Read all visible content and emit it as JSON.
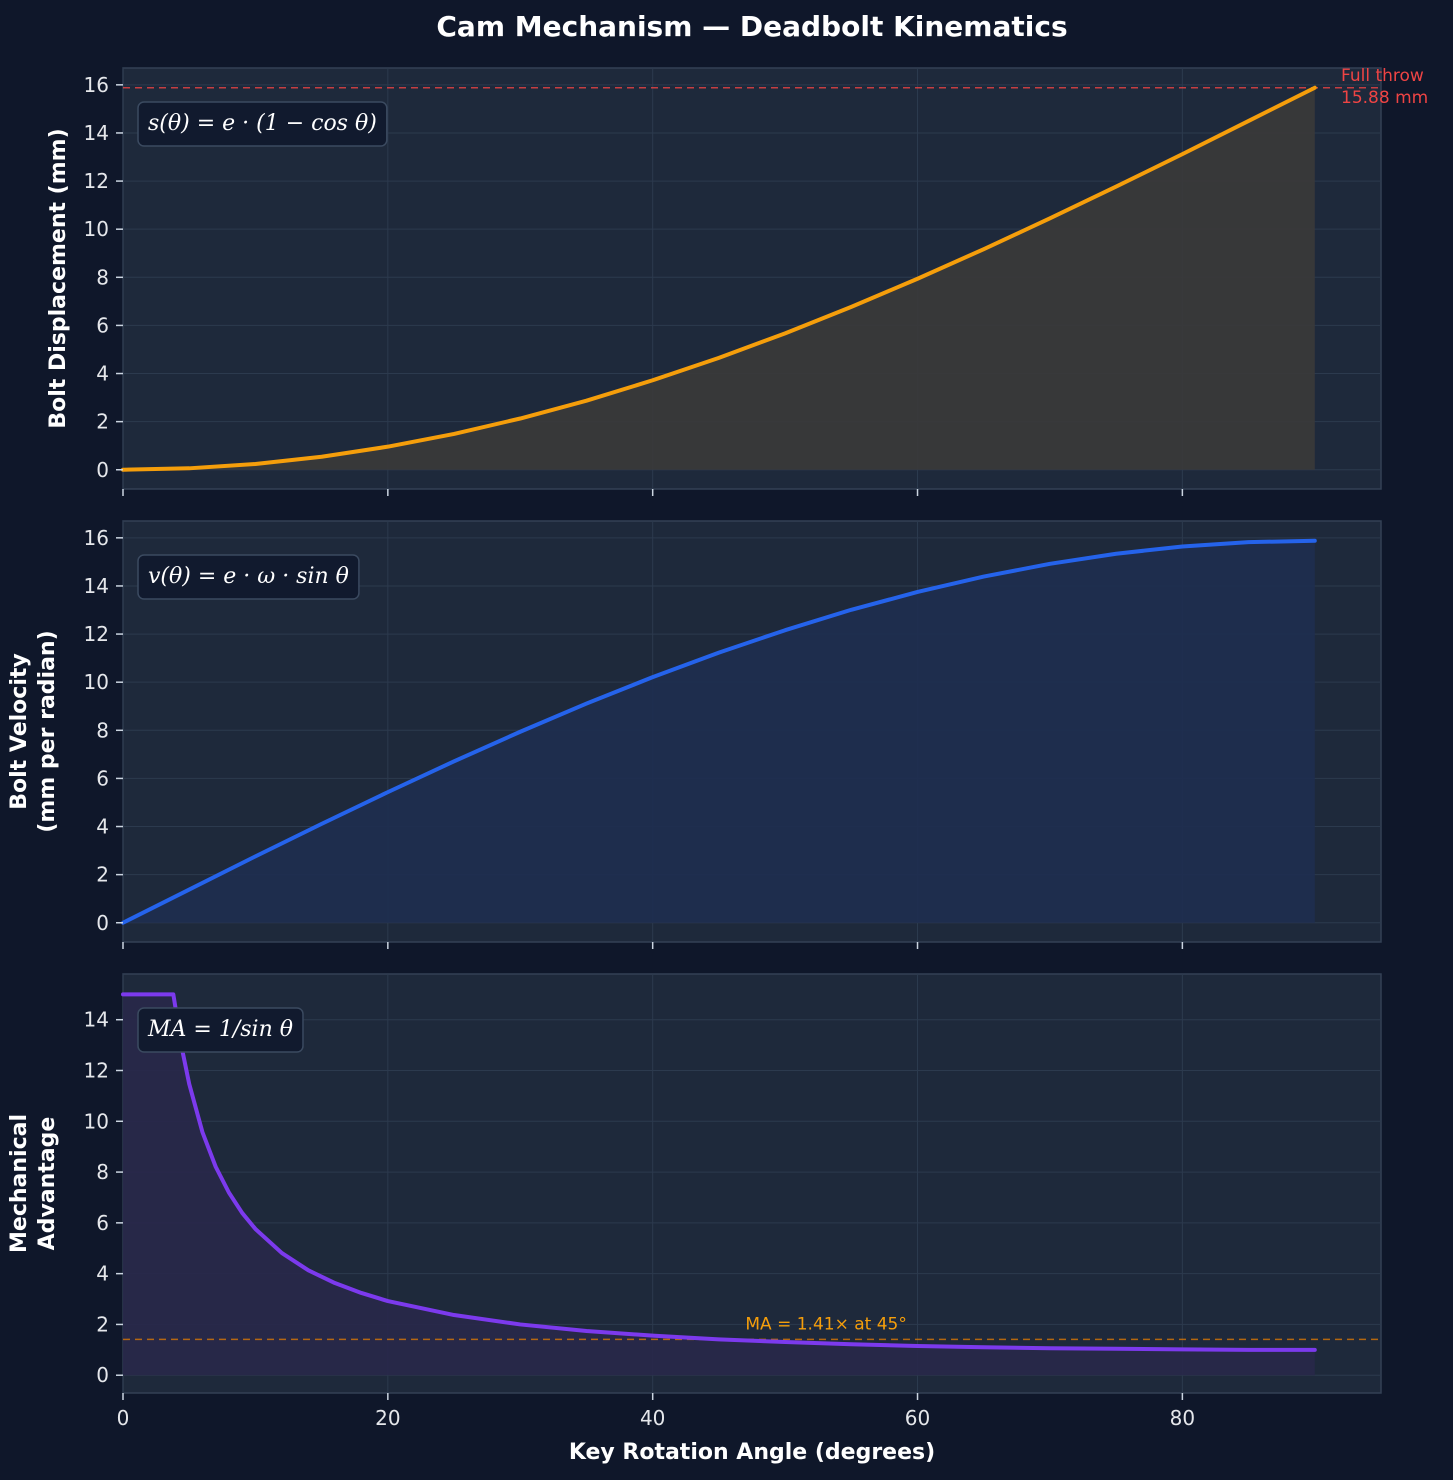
{
  "chart_data": {
    "title": "Cam Mechanism — Deadbolt Kinematics",
    "xlabel": "Key Rotation Angle (degrees)",
    "xlim": [
      0,
      95
    ],
    "xticks": [
      0,
      20,
      40,
      60,
      80
    ],
    "grid": true,
    "panels": [
      {
        "type": "area",
        "ylabel_lines": [
          "Bolt Displacement (mm)"
        ],
        "formula": "s(θ) = e · (1 − cos θ)",
        "ylim": [
          -0.8,
          16.7
        ],
        "yticks": [
          0,
          2,
          4,
          6,
          8,
          10,
          12,
          14,
          16
        ],
        "color": "#f59e0b",
        "fill_color": "#3a3a3a",
        "x": [
          0,
          5,
          10,
          15,
          20,
          25,
          30,
          35,
          40,
          45,
          50,
          55,
          60,
          65,
          70,
          75,
          80,
          85,
          90
        ],
        "y": [
          0,
          0.06,
          0.24,
          0.54,
          0.96,
          1.49,
          2.13,
          2.87,
          3.72,
          4.65,
          5.67,
          6.77,
          7.94,
          9.17,
          10.45,
          11.77,
          13.12,
          14.5,
          15.88
        ],
        "reference": {
          "value": 15.88,
          "color": "#ef4444",
          "label_lines": [
            "Full throw",
            "15.88 mm"
          ]
        }
      },
      {
        "type": "area",
        "ylabel_lines": [
          "Bolt Velocity",
          "(mm per radian)"
        ],
        "formula": "v(θ) = e · ω · sin θ",
        "ylim": [
          -0.8,
          16.7
        ],
        "yticks": [
          0,
          2,
          4,
          6,
          8,
          10,
          12,
          14,
          16
        ],
        "color": "#2563eb",
        "fill_color": "#1e2d50",
        "x": [
          0,
          5,
          10,
          15,
          20,
          25,
          30,
          35,
          40,
          45,
          50,
          55,
          60,
          65,
          70,
          75,
          80,
          85,
          90
        ],
        "y": [
          0,
          1.38,
          2.76,
          4.11,
          5.43,
          6.71,
          7.94,
          9.11,
          10.21,
          11.23,
          12.16,
          13.01,
          13.75,
          14.39,
          14.92,
          15.34,
          15.64,
          15.82,
          15.88
        ]
      },
      {
        "type": "area",
        "ylabel_lines": [
          "Mechanical",
          "Advantage"
        ],
        "formula": "MA = 1/sin θ",
        "ylim": [
          -0.7,
          15.8
        ],
        "yticks": [
          0,
          2,
          4,
          6,
          8,
          10,
          12,
          14
        ],
        "color": "#7c3aed",
        "fill_color": "#28284a",
        "x": [
          0,
          3.8,
          4.5,
          5,
          6,
          7,
          8,
          9,
          10,
          12,
          14,
          16,
          18,
          20,
          25,
          30,
          35,
          40,
          45,
          50,
          55,
          60,
          65,
          70,
          75,
          80,
          85,
          90
        ],
        "y": [
          15,
          15,
          12.74,
          11.47,
          9.57,
          8.21,
          7.19,
          6.39,
          5.76,
          4.81,
          4.13,
          3.63,
          3.24,
          2.92,
          2.37,
          2.0,
          1.74,
          1.56,
          1.41,
          1.31,
          1.22,
          1.15,
          1.1,
          1.06,
          1.04,
          1.02,
          1.0,
          1.0
        ],
        "reference": {
          "value": 1.41,
          "color": "#d97706",
          "label_lines": [
            "MA = 1.41× at 45°"
          ],
          "label_x": 47
        }
      }
    ]
  }
}
